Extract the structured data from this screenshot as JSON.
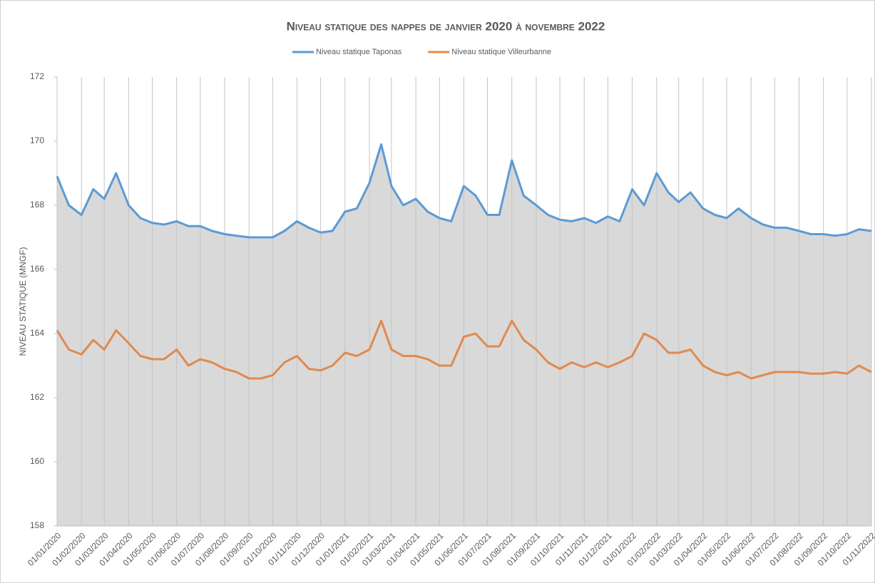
{
  "chart_data": {
    "type": "line",
    "title": "Niveau statique des nappes de janvier 2020 à novembre 2022",
    "ylabel": "NIVEAU STATIQUE (MNGF)",
    "area_under": "Niveau statique Taponas",
    "area_color": "#d9d9d9",
    "grid": "x",
    "legend": "top",
    "x": [
      "2020-01-01",
      "2020-01-16",
      "2020-02-01",
      "2020-02-16",
      "2020-03-01",
      "2020-03-16",
      "2020-04-01",
      "2020-04-16",
      "2020-05-01",
      "2020-05-16",
      "2020-06-01",
      "2020-06-16",
      "2020-07-01",
      "2020-07-16",
      "2020-08-01",
      "2020-08-16",
      "2020-09-01",
      "2020-09-16",
      "2020-10-01",
      "2020-10-16",
      "2020-11-01",
      "2020-11-16",
      "2020-12-01",
      "2020-12-16",
      "2021-01-01",
      "2021-01-16",
      "2021-02-01",
      "2021-02-16",
      "2021-03-01",
      "2021-03-16",
      "2021-04-01",
      "2021-04-16",
      "2021-05-01",
      "2021-05-16",
      "2021-06-01",
      "2021-06-16",
      "2021-07-01",
      "2021-07-16",
      "2021-08-01",
      "2021-08-16",
      "2021-09-01",
      "2021-09-16",
      "2021-10-01",
      "2021-10-16",
      "2021-11-01",
      "2021-11-16",
      "2021-12-01",
      "2021-12-16",
      "2022-01-01",
      "2022-01-16",
      "2022-02-01",
      "2022-02-16",
      "2022-03-01",
      "2022-03-16",
      "2022-04-01",
      "2022-04-16",
      "2022-05-01",
      "2022-05-16",
      "2022-06-01",
      "2022-06-16",
      "2022-07-01",
      "2022-07-16",
      "2022-08-01",
      "2022-08-16",
      "2022-09-01",
      "2022-09-16",
      "2022-10-01",
      "2022-10-16",
      "2022-11-01"
    ],
    "series": [
      {
        "name": "Niveau statique Taponas",
        "color": "#5b9bd5",
        "values": [
          168.9,
          168.0,
          167.7,
          168.5,
          168.2,
          169.0,
          168.0,
          167.6,
          167.45,
          167.4,
          167.5,
          167.35,
          167.35,
          167.2,
          167.1,
          167.05,
          167.0,
          167.0,
          167.0,
          167.2,
          167.5,
          167.3,
          167.15,
          167.2,
          167.8,
          167.9,
          168.7,
          169.9,
          168.6,
          168.0,
          168.2,
          167.8,
          167.6,
          167.5,
          168.6,
          168.3,
          167.7,
          167.7,
          169.4,
          168.3,
          168.0,
          167.7,
          167.55,
          167.5,
          167.6,
          167.45,
          167.65,
          167.5,
          168.5,
          168.0,
          169.0,
          168.4,
          168.1,
          168.4,
          167.9,
          167.7,
          167.6,
          167.9,
          167.6,
          167.4,
          167.3,
          167.3,
          167.2,
          167.1,
          167.1,
          167.05,
          167.1,
          167.25,
          167.2
        ]
      },
      {
        "name": "Niveau statique Villeurbanne",
        "color": "#e08a4e",
        "values": [
          164.1,
          163.5,
          163.35,
          163.8,
          163.5,
          164.1,
          163.7,
          163.3,
          163.2,
          163.2,
          163.5,
          163.0,
          163.2,
          163.1,
          162.9,
          162.8,
          162.6,
          162.6,
          162.7,
          163.1,
          163.3,
          162.9,
          162.85,
          163.0,
          163.4,
          163.3,
          163.5,
          164.4,
          163.5,
          163.3,
          163.3,
          163.2,
          163.0,
          163.0,
          163.9,
          164.0,
          163.6,
          163.6,
          164.4,
          163.8,
          163.5,
          163.1,
          162.9,
          163.1,
          162.95,
          163.1,
          162.95,
          163.1,
          163.3,
          164.0,
          163.8,
          163.4,
          163.4,
          163.5,
          163.0,
          162.8,
          162.7,
          162.8,
          162.6,
          162.7,
          162.8,
          162.8,
          162.8,
          162.75,
          162.75,
          162.8,
          162.75,
          163.0,
          162.8
        ]
      }
    ],
    "xlim": [
      "2020-01-01",
      "2022-11-01"
    ],
    "xticks": [
      {
        "value": "2020-01-01",
        "label": "01/01/2020"
      },
      {
        "value": "2020-02-01",
        "label": "01/02/2020"
      },
      {
        "value": "2020-03-01",
        "label": "01/03/2020"
      },
      {
        "value": "2020-04-01",
        "label": "01/04/2020"
      },
      {
        "value": "2020-05-01",
        "label": "01/05/2020"
      },
      {
        "value": "2020-06-01",
        "label": "01/06/2020"
      },
      {
        "value": "2020-07-01",
        "label": "01/07/2020"
      },
      {
        "value": "2020-08-01",
        "label": "01/08/2020"
      },
      {
        "value": "2020-09-01",
        "label": "01/09/2020"
      },
      {
        "value": "2020-10-01",
        "label": "01/10/2020"
      },
      {
        "value": "2020-11-01",
        "label": "01/11/2020"
      },
      {
        "value": "2020-12-01",
        "label": "01/12/2020"
      },
      {
        "value": "2021-01-01",
        "label": "01/01/2021"
      },
      {
        "value": "2021-02-01",
        "label": "01/02/2021"
      },
      {
        "value": "2021-03-01",
        "label": "01/03/2021"
      },
      {
        "value": "2021-04-01",
        "label": "01/04/2021"
      },
      {
        "value": "2021-05-01",
        "label": "01/05/2021"
      },
      {
        "value": "2021-06-01",
        "label": "01/06/2021"
      },
      {
        "value": "2021-07-01",
        "label": "01/07/2021"
      },
      {
        "value": "2021-08-01",
        "label": "01/08/2021"
      },
      {
        "value": "2021-09-01",
        "label": "01/09/2021"
      },
      {
        "value": "2021-10-01",
        "label": "01/10/2021"
      },
      {
        "value": "2021-11-01",
        "label": "01/11/2021"
      },
      {
        "value": "2021-12-01",
        "label": "01/12/2021"
      },
      {
        "value": "2022-01-01",
        "label": "01/01/2022"
      },
      {
        "value": "2022-02-01",
        "label": "01/02/2022"
      },
      {
        "value": "2022-03-01",
        "label": "01/03/2022"
      },
      {
        "value": "2022-04-01",
        "label": "01/04/2022"
      },
      {
        "value": "2022-05-01",
        "label": "01/05/2022"
      },
      {
        "value": "2022-06-01",
        "label": "01/06/2022"
      },
      {
        "value": "2022-07-01",
        "label": "01/07/2022"
      },
      {
        "value": "2022-08-01",
        "label": "01/08/2022"
      },
      {
        "value": "2022-09-01",
        "label": "01/09/2022"
      },
      {
        "value": "2022-10-01",
        "label": "01/10/2022"
      },
      {
        "value": "2022-11-01",
        "label": "01/11/2022"
      }
    ],
    "ylim": [
      158,
      172
    ],
    "yticks": [
      158,
      160,
      162,
      164,
      166,
      168,
      170,
      172
    ]
  }
}
